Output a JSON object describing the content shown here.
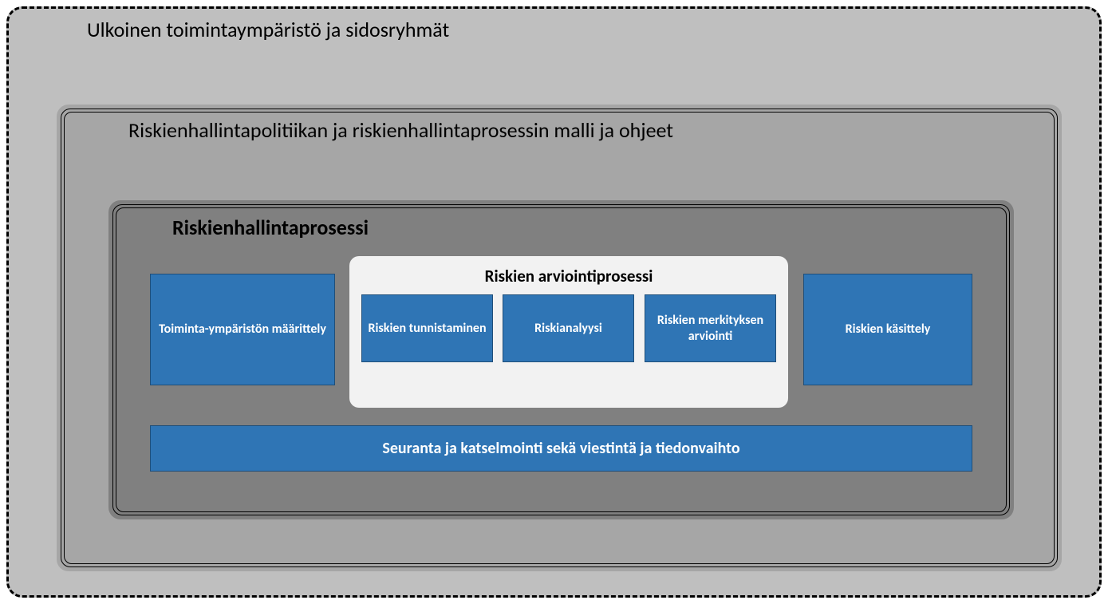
{
  "diagram": {
    "type": "nested-box-diagram",
    "background_color": "#ffffff",
    "outer": {
      "title": "Ulkoinen toimintaympäristö ja sidosryhmät",
      "bg_color": "#bfbfbf",
      "border_style": "dashed",
      "border_color": "#000000",
      "border_width": 3,
      "border_radius": 20,
      "title_fontsize": 26,
      "title_color": "#000000"
    },
    "mid": {
      "title": "Riskienhallintapolitiikan ja riskienhallintaprosessin malli ja ohjeet",
      "bg_color": "#a6a6a6",
      "border_style": "double",
      "border_color": "#000000",
      "border_radius": 15,
      "title_fontsize": 26,
      "title_color": "#000000"
    },
    "inner": {
      "title": "Riskienhallintaprosessi",
      "bg_color": "#808080",
      "border_style": "double",
      "border_color": "#000000",
      "border_radius": 15,
      "title_fontsize": 26,
      "title_fontweight": "bold",
      "title_color": "#000000"
    },
    "process_boxes": {
      "bg_color": "#2f75b5",
      "border_color": "#1f4e79",
      "text_color": "#ffffff",
      "fontsize": 16,
      "fontweight": "bold",
      "toiminta": "Toiminta-ympäristön määrittely",
      "kasittely": "Riskien käsittely",
      "seuranta": "Seuranta ja katselmointi sekä viestintä ja tiedonvaihto"
    },
    "assessment_group": {
      "title": "Riskien arviointiprosessi",
      "bg_color": "#f2f2f2",
      "border_radius": 12,
      "title_fontsize": 21,
      "title_fontweight": "bold",
      "title_color": "#000000",
      "boxes": {
        "tunnistaminen": "Riskien tunnistaminen",
        "analyysi": "Riskianalyysi",
        "merkitys": "Riskien merkityksen arviointi"
      }
    }
  }
}
